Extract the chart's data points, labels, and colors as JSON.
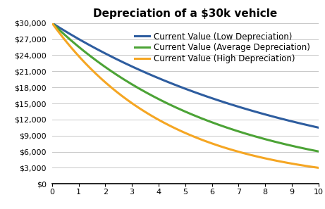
{
  "title": "Depreciation of a $30k vehicle",
  "initial_value": 30000,
  "years": 10,
  "low_rate": 0.105,
  "avg_rate": 0.16,
  "high_rate": 0.23,
  "low_color": "#2E5D9F",
  "avg_color": "#4CA336",
  "high_color": "#F5A623",
  "low_label": "Current Value (Low Depreciation)",
  "avg_label": "Current Value (Average Depreciation)",
  "high_label": "Current Value (High Depreciation)",
  "ylim": [
    0,
    30000
  ],
  "yticks": [
    0,
    3000,
    6000,
    9000,
    12000,
    15000,
    18000,
    21000,
    24000,
    27000,
    30000
  ],
  "xticks": [
    0,
    1,
    2,
    3,
    4,
    5,
    6,
    7,
    8,
    9,
    10
  ],
  "background_color": "#FFFFFF",
  "grid_color": "#C8C8C8",
  "title_fontsize": 11,
  "legend_fontsize": 8.5,
  "tick_fontsize": 8,
  "line_width": 2.2
}
